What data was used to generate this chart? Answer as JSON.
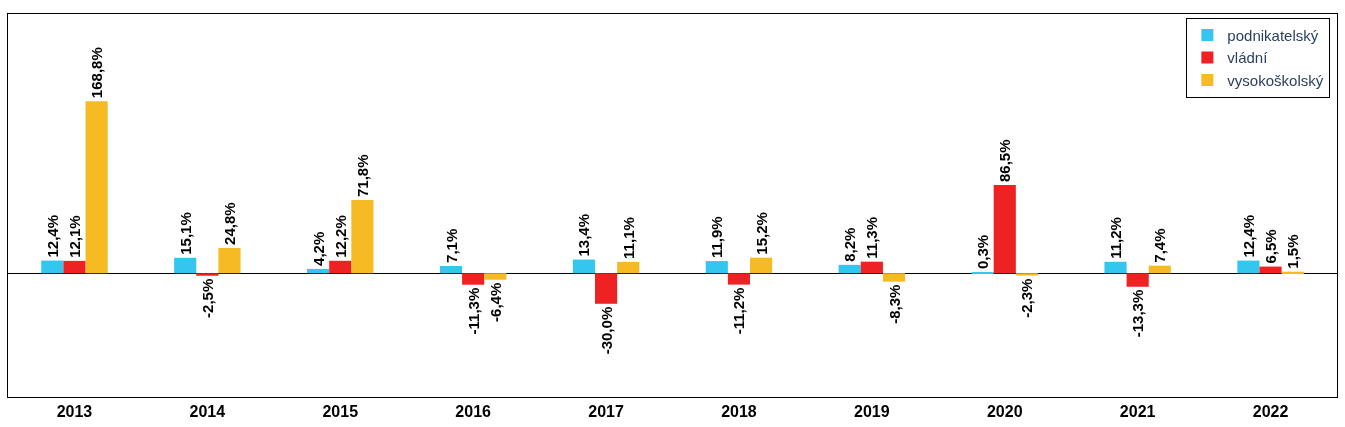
{
  "chart_data": {
    "type": "bar",
    "categories": [
      "2013",
      "2014",
      "2015",
      "2016",
      "2017",
      "2018",
      "2019",
      "2020",
      "2021",
      "2022"
    ],
    "series": [
      {
        "name": "podnikatelský",
        "color": "#33c6ee",
        "values": [
          12.4,
          15.1,
          4.2,
          7.1,
          13.4,
          11.9,
          8.2,
          0.3,
          11.2,
          12.4
        ],
        "value_labels": [
          "12,4%",
          "15,1%",
          "4,2%",
          "7,1%",
          "13,4%",
          "11,9%",
          "8,2%",
          "0,3%",
          "11,2%",
          "12,4%"
        ]
      },
      {
        "name": "vládní",
        "color": "#ee2222",
        "values": [
          12.1,
          -2.5,
          12.2,
          -11.3,
          -30.0,
          -11.2,
          11.3,
          86.5,
          -13.3,
          6.5
        ],
        "value_labels": [
          "12,1%",
          "-2,5%",
          "12,2%",
          "-11,3%",
          "-30,0%",
          "-11,2%",
          "11,3%",
          "86,5%",
          "-13,3%",
          "6,5%"
        ]
      },
      {
        "name": "vysokoškolský",
        "color": "#f6bb22",
        "values": [
          168.8,
          24.8,
          71.8,
          -6.4,
          11.1,
          15.2,
          -8.3,
          -2.3,
          7.4,
          1.5
        ],
        "value_labels": [
          "168,8%",
          "24,8%",
          "71,8%",
          "-6,4%",
          "11,1%",
          "15,2%",
          "-8,3%",
          "-2,3%",
          "7,4%",
          "1,5%"
        ]
      }
    ],
    "legend": "top right",
    "tick_labels": "x"
  }
}
